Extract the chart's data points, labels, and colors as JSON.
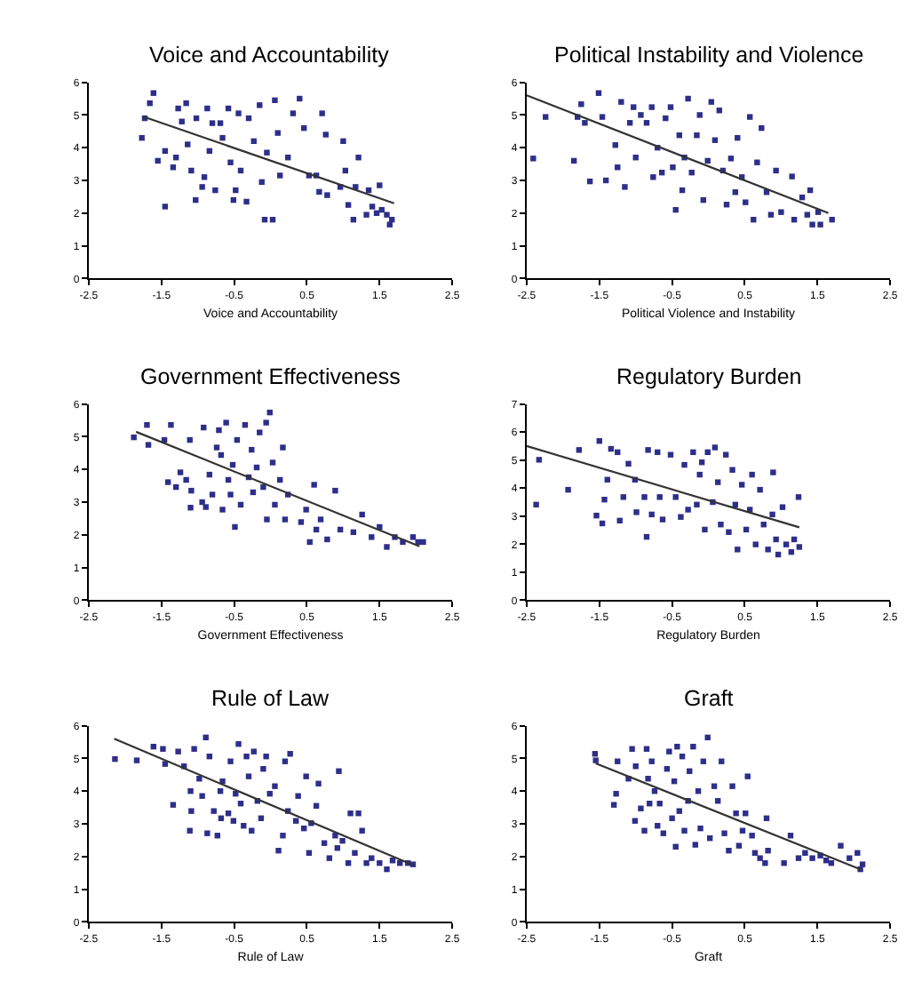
{
  "chart_data": [
    {
      "type": "scatter",
      "title": "Voice and Accountability",
      "xlabel": "Voice and Accountability",
      "xlim": [
        -2.5,
        2.5
      ],
      "xticks": [
        -2.5,
        -1.5,
        -0.5,
        0.5,
        1.5,
        2.5
      ],
      "ylim": [
        0,
        6
      ],
      "yticks": [
        0,
        1,
        2,
        3,
        4,
        5,
        6
      ],
      "marker": "square",
      "series": [
        {
          "color": "#2e2e8a",
          "x": [
            -1.77,
            -1.73,
            -1.66,
            -1.61,
            -1.55,
            -1.45,
            -1.45,
            -1.3,
            -1.27,
            -1.34,
            -1.22,
            -1.16,
            -1.14,
            -1.09,
            -1.03,
            -1.02,
            -0.94,
            -0.91,
            -0.87,
            -0.8,
            -0.84,
            -0.76,
            -0.69,
            -0.66,
            -0.58,
            -0.55,
            -0.51,
            -0.48,
            -0.44,
            -0.41,
            -0.33,
            -0.3,
            -0.23,
            -0.15,
            -0.12,
            -0.08,
            -0.05,
            0.03,
            0.06,
            0.1,
            0.13,
            0.24,
            0.31,
            0.4,
            0.46,
            0.53,
            0.63,
            0.67,
            0.71,
            0.76,
            0.78,
            0.96,
            1.0,
            1.03,
            1.07,
            1.14,
            1.17,
            1.21,
            1.32,
            1.35,
            1.4,
            1.46,
            1.5,
            1.53,
            1.6,
            1.64,
            1.67
          ],
          "values": [
            4.3,
            4.9,
            5.36,
            5.67,
            3.6,
            2.2,
            3.9,
            3.7,
            5.2,
            3.4,
            4.8,
            5.36,
            4.1,
            3.3,
            2.4,
            4.9,
            2.8,
            3.1,
            5.2,
            4.75,
            3.9,
            2.7,
            4.75,
            4.3,
            5.2,
            3.55,
            2.4,
            2.7,
            5.05,
            3.3,
            2.35,
            4.9,
            4.2,
            5.3,
            2.95,
            1.8,
            3.85,
            1.8,
            5.45,
            4.45,
            3.15,
            3.7,
            5.05,
            5.5,
            4.6,
            3.15,
            3.15,
            2.65,
            5.05,
            4.4,
            2.55,
            2.8,
            4.2,
            3.3,
            2.25,
            1.8,
            2.8,
            3.7,
            1.95,
            2.7,
            2.2,
            2.0,
            2.85,
            2.1,
            1.95,
            1.65,
            1.8
          ]
        },
        {
          "type": "line",
          "color": "#333333",
          "x": [
            -1.75,
            1.7
          ],
          "values": [
            4.95,
            2.3
          ],
          "marker": "none"
        }
      ]
    },
    {
      "type": "scatter",
      "title": "Political Instability and Violence",
      "xlabel": "Political Violence and Instability",
      "xlim": [
        -2.5,
        2.5
      ],
      "xticks": [
        -2.5,
        -1.5,
        -0.5,
        0.5,
        1.5,
        2.5
      ],
      "ylim": [
        0,
        6
      ],
      "yticks": [
        0,
        1,
        2,
        3,
        4,
        5,
        6
      ],
      "marker": "square",
      "series": [
        {
          "color": "#2e2e8a",
          "x": [
            -2.41,
            -2.24,
            -1.85,
            -1.8,
            -1.75,
            -1.7,
            -1.63,
            -1.51,
            -1.46,
            -1.41,
            -1.28,
            -1.25,
            -1.2,
            -1.15,
            -1.08,
            -1.03,
            -1.0,
            -0.93,
            -0.85,
            -0.78,
            -0.76,
            -0.7,
            -0.64,
            -0.59,
            -0.52,
            -0.49,
            -0.45,
            -0.4,
            -0.36,
            -0.33,
            -0.28,
            -0.23,
            -0.16,
            -0.12,
            -0.07,
            -0.01,
            0.04,
            0.09,
            0.15,
            0.2,
            0.25,
            0.31,
            0.37,
            0.4,
            0.46,
            0.51,
            0.57,
            0.62,
            0.67,
            0.73,
            0.8,
            0.86,
            0.93,
            1.0,
            1.15,
            1.18,
            1.29,
            1.36,
            1.4,
            1.43,
            1.51,
            1.54,
            1.7
          ],
          "values": [
            3.67,
            4.94,
            3.6,
            4.94,
            5.33,
            4.76,
            2.97,
            5.67,
            4.94,
            3.0,
            4.08,
            3.4,
            5.4,
            2.8,
            4.76,
            5.24,
            3.7,
            5.0,
            4.76,
            5.24,
            3.1,
            4.0,
            3.24,
            4.9,
            5.24,
            3.4,
            2.1,
            4.38,
            2.7,
            3.7,
            5.5,
            3.24,
            4.38,
            5.0,
            2.4,
            3.6,
            5.4,
            4.23,
            5.14,
            3.3,
            2.26,
            3.67,
            2.64,
            4.3,
            3.1,
            2.33,
            4.94,
            1.8,
            3.55,
            4.6,
            2.64,
            1.95,
            3.3,
            2.03,
            3.12,
            1.8,
            2.48,
            1.95,
            2.7,
            1.65,
            2.03,
            1.65,
            1.8
          ]
        },
        {
          "type": "line",
          "color": "#333333",
          "x": [
            -2.5,
            1.65
          ],
          "values": [
            5.6,
            2.0
          ],
          "marker": "none"
        }
      ]
    },
    {
      "type": "scatter",
      "title": "Government Effectiveness",
      "xlabel": "Government Effectiveness",
      "xlim": [
        -2.5,
        2.5
      ],
      "xticks": [
        -2.5,
        -1.5,
        -0.5,
        0.5,
        1.5,
        2.5
      ],
      "ylim": [
        0,
        6
      ],
      "yticks": [
        0,
        1,
        2,
        3,
        4,
        5,
        6
      ],
      "marker": "square",
      "series": [
        {
          "color": "#2e2e8a",
          "x": [
            -1.88,
            -1.7,
            -1.68,
            -1.46,
            -1.41,
            -1.37,
            -1.3,
            -1.24,
            -1.16,
            -1.11,
            -1.1,
            -1.09,
            -0.94,
            -0.92,
            -0.89,
            -0.84,
            -0.8,
            -0.74,
            -0.71,
            -0.68,
            -0.66,
            -0.61,
            -0.58,
            -0.55,
            -0.52,
            -0.49,
            -0.46,
            -0.41,
            -0.35,
            -0.3,
            -0.26,
            -0.24,
            -0.19,
            -0.15,
            -0.1,
            -0.06,
            -0.01,
            0.03,
            -0.05,
            0.06,
            0.13,
            0.17,
            0.2,
            0.24,
            0.42,
            0.49,
            0.54,
            0.6,
            0.63,
            0.69,
            0.78,
            0.89,
            0.96,
            1.14,
            1.26,
            1.39,
            1.5,
            1.6,
            1.71,
            1.82,
            1.96,
            2.03,
            2.1
          ],
          "values": [
            4.98,
            5.36,
            4.75,
            4.9,
            3.61,
            5.36,
            3.46,
            3.91,
            3.68,
            4.9,
            2.83,
            3.35,
            3.0,
            5.28,
            2.85,
            3.84,
            3.23,
            4.67,
            5.2,
            4.44,
            2.77,
            5.43,
            3.68,
            3.23,
            4.14,
            2.24,
            4.9,
            2.92,
            5.36,
            3.76,
            4.6,
            3.3,
            4.06,
            5.13,
            3.46,
            5.43,
            5.74,
            4.21,
            2.47,
            2.92,
            3.68,
            4.67,
            2.47,
            3.23,
            2.39,
            2.77,
            1.78,
            3.53,
            2.16,
            2.47,
            1.86,
            3.35,
            2.16,
            2.08,
            2.62,
            1.93,
            2.24,
            1.63,
            1.93,
            1.78,
            1.93,
            1.78,
            1.78
          ]
        },
        {
          "type": "line",
          "color": "#333333",
          "x": [
            -1.85,
            2.05
          ],
          "values": [
            5.15,
            1.65
          ],
          "marker": "none"
        }
      ]
    },
    {
      "type": "scatter",
      "title": "Regulatory Burden",
      "xlabel": "Regulatory Burden",
      "xlim": [
        -2.5,
        2.5
      ],
      "xticks": [
        -2.5,
        -1.5,
        -0.5,
        0.5,
        1.5,
        2.5
      ],
      "ylim": [
        0,
        7
      ],
      "yticks": [
        0,
        1,
        2,
        3,
        4,
        5,
        6,
        7
      ],
      "marker": "square",
      "series": [
        {
          "color": "#2e2e8a",
          "x": [
            -2.37,
            -2.33,
            -1.93,
            -1.78,
            -1.54,
            -1.5,
            -1.46,
            -1.43,
            -1.39,
            -1.34,
            -1.25,
            -1.22,
            -1.17,
            -1.1,
            -1.01,
            -0.99,
            -0.88,
            -0.85,
            -0.83,
            -0.78,
            -0.7,
            -0.67,
            -0.63,
            -0.52,
            -0.45,
            -0.38,
            -0.33,
            -0.28,
            -0.21,
            -0.16,
            -0.12,
            -0.09,
            -0.05,
            -0.01,
            0.06,
            0.09,
            0.13,
            0.17,
            0.24,
            0.28,
            0.33,
            0.37,
            0.4,
            0.46,
            0.52,
            0.57,
            0.6,
            0.65,
            0.71,
            0.76,
            0.82,
            0.88,
            0.89,
            0.93,
            0.96,
            1.02,
            1.07,
            1.14,
            1.18,
            1.24,
            1.25
          ],
          "values": [
            3.41,
            5.01,
            3.94,
            5.36,
            3.02,
            5.68,
            2.74,
            3.59,
            4.3,
            5.4,
            5.28,
            2.84,
            3.68,
            4.87,
            4.3,
            3.14,
            3.68,
            2.26,
            5.36,
            3.06,
            5.28,
            3.68,
            2.88,
            5.19,
            3.68,
            2.97,
            4.83,
            3.23,
            5.28,
            3.41,
            4.48,
            4.92,
            2.52,
            5.28,
            3.5,
            5.45,
            4.21,
            2.7,
            5.19,
            2.43,
            4.65,
            3.41,
            1.81,
            4.12,
            2.52,
            3.23,
            4.48,
            1.99,
            3.94,
            2.7,
            1.81,
            3.06,
            4.56,
            2.17,
            1.63,
            3.32,
            1.99,
            1.72,
            2.17,
            3.68,
            1.9
          ]
        },
        {
          "type": "line",
          "color": "#333333",
          "x": [
            -2.5,
            1.25
          ],
          "values": [
            5.5,
            2.6
          ],
          "marker": "none"
        }
      ]
    },
    {
      "type": "scatter",
      "title": "Rule of Law",
      "xlabel": "Rule of Law",
      "xlim": [
        -2.5,
        2.5
      ],
      "xticks": [
        -2.5,
        -1.5,
        -0.5,
        0.5,
        1.5,
        2.5
      ],
      "ylim": [
        0,
        6
      ],
      "yticks": [
        0,
        1,
        2,
        3,
        4,
        5,
        6
      ],
      "marker": "square",
      "series": [
        {
          "color": "#2e2e8a",
          "x": [
            -2.14,
            -1.84,
            -1.61,
            -1.48,
            -1.45,
            -1.34,
            -1.27,
            -1.19,
            -1.11,
            -1.1,
            -1.09,
            -1.05,
            -0.98,
            -0.94,
            -0.89,
            -0.87,
            -0.84,
            -0.78,
            -0.73,
            -0.69,
            -0.68,
            -0.66,
            -0.58,
            -0.55,
            -0.51,
            -0.48,
            -0.44,
            -0.41,
            -0.37,
            -0.33,
            -0.3,
            -0.26,
            -0.23,
            -0.18,
            -0.13,
            -0.1,
            -0.06,
            -0.01,
            0.06,
            0.11,
            0.17,
            0.2,
            0.24,
            0.27,
            0.35,
            0.38,
            0.46,
            0.49,
            0.53,
            0.56,
            0.63,
            0.66,
            0.74,
            0.81,
            0.89,
            0.92,
            0.94,
            0.99,
            1.07,
            1.1,
            1.16,
            1.21,
            1.26,
            1.32,
            1.39,
            1.5,
            1.6,
            1.68,
            1.78,
            1.89,
            1.96
          ],
          "values": [
            4.98,
            4.94,
            5.36,
            5.29,
            4.83,
            3.58,
            5.21,
            4.76,
            2.79,
            4.0,
            3.39,
            5.29,
            4.38,
            3.85,
            5.64,
            2.71,
            5.06,
            3.39,
            2.64,
            4.0,
            3.17,
            4.3,
            3.32,
            4.91,
            3.09,
            3.92,
            5.44,
            3.62,
            2.94,
            5.06,
            4.45,
            2.79,
            5.21,
            3.7,
            3.17,
            4.68,
            5.06,
            3.92,
            4.15,
            2.18,
            2.64,
            4.91,
            3.39,
            5.14,
            3.09,
            3.85,
            2.86,
            4.45,
            2.11,
            3.02,
            3.55,
            4.23,
            2.41,
            1.95,
            2.64,
            2.26,
            4.61,
            2.48,
            1.8,
            3.32,
            2.11,
            3.32,
            2.79,
            1.8,
            1.95,
            1.8,
            1.61,
            1.88,
            1.8,
            1.8,
            1.76
          ]
        },
        {
          "type": "line",
          "color": "#333333",
          "x": [
            -2.15,
            1.95
          ],
          "values": [
            5.6,
            1.75
          ],
          "marker": "none"
        }
      ]
    },
    {
      "type": "scatter",
      "title": "Graft",
      "xlabel": "Graft",
      "xlim": [
        -2.5,
        2.5
      ],
      "xticks": [
        -2.5,
        -1.5,
        -0.5,
        0.5,
        1.5,
        2.5
      ],
      "ylim": [
        0,
        6
      ],
      "yticks": [
        0,
        1,
        2,
        3,
        4,
        5,
        6
      ],
      "marker": "square",
      "series": [
        {
          "color": "#2e2e8a",
          "x": [
            -1.56,
            -1.55,
            -1.3,
            -1.27,
            -1.25,
            -1.1,
            -1.05,
            -1.01,
            -1.0,
            -0.93,
            -0.88,
            -0.85,
            -0.83,
            -0.81,
            -0.78,
            -0.74,
            -0.7,
            -0.67,
            -0.62,
            -0.57,
            -0.54,
            -0.5,
            -0.47,
            -0.45,
            -0.43,
            -0.4,
            -0.36,
            -0.33,
            -0.28,
            -0.26,
            -0.21,
            -0.18,
            -0.14,
            -0.11,
            -0.07,
            -0.01,
            0.02,
            0.08,
            0.13,
            0.18,
            0.22,
            0.28,
            0.33,
            0.38,
            0.42,
            0.47,
            0.51,
            0.54,
            0.6,
            0.64,
            0.71,
            0.78,
            0.8,
            0.82,
            1.04,
            1.13,
            1.24,
            1.33,
            1.43,
            1.54,
            1.62,
            1.69,
            1.82,
            1.94,
            2.05,
            2.12,
            2.09
          ],
          "values": [
            5.14,
            4.94,
            3.58,
            3.92,
            4.91,
            4.38,
            5.29,
            3.09,
            4.76,
            3.47,
            2.79,
            5.29,
            4.38,
            3.62,
            4.91,
            4.0,
            2.94,
            3.62,
            2.71,
            4.68,
            5.21,
            3.17,
            4.3,
            2.3,
            5.36,
            3.39,
            5.06,
            2.79,
            3.7,
            4.61,
            5.36,
            2.36,
            4.0,
            2.86,
            4.91,
            5.64,
            2.56,
            4.15,
            3.7,
            4.91,
            2.71,
            2.18,
            4.15,
            3.32,
            2.33,
            2.79,
            3.32,
            4.45,
            2.64,
            2.11,
            1.95,
            1.8,
            3.17,
            2.18,
            1.8,
            2.64,
            1.95,
            2.11,
            1.95,
            2.03,
            1.88,
            1.8,
            2.33,
            1.95,
            2.11,
            1.76,
            1.61
          ]
        },
        {
          "type": "line",
          "color": "#333333",
          "x": [
            -1.55,
            2.1
          ],
          "values": [
            4.85,
            1.6
          ],
          "marker": "none"
        }
      ]
    }
  ]
}
